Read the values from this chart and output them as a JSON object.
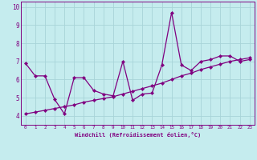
{
  "xlabel": "Windchill (Refroidissement éolien,°C)",
  "xlim": [
    -0.5,
    23.5
  ],
  "ylim": [
    3.5,
    10.3
  ],
  "xticks": [
    0,
    1,
    2,
    3,
    4,
    5,
    6,
    7,
    8,
    9,
    10,
    11,
    12,
    13,
    14,
    15,
    16,
    17,
    18,
    19,
    20,
    21,
    22,
    23
  ],
  "yticks": [
    4,
    5,
    6,
    7,
    8,
    9,
    10
  ],
  "background_color": "#c5ecee",
  "grid_color": "#a8d4d8",
  "line_color": "#800080",
  "line1_x": [
    0,
    1,
    2,
    3,
    4,
    5,
    6,
    7,
    8,
    9,
    10,
    11,
    12,
    13,
    14,
    15,
    16,
    17,
    18,
    19,
    20,
    21,
    22,
    23
  ],
  "line1_y": [
    6.9,
    6.2,
    6.2,
    4.9,
    4.1,
    6.1,
    6.1,
    5.4,
    5.2,
    5.1,
    7.0,
    4.85,
    5.2,
    5.25,
    6.8,
    9.7,
    6.8,
    6.5,
    7.0,
    7.1,
    7.3,
    7.3,
    7.0,
    7.1
  ],
  "line2_x": [
    0,
    1,
    2,
    3,
    4,
    5,
    6,
    7,
    8,
    9,
    10,
    11,
    12,
    13,
    14,
    15,
    16,
    17,
    18,
    19,
    20,
    21,
    22,
    23
  ],
  "line2_y": [
    4.1,
    4.2,
    4.3,
    4.4,
    4.5,
    4.6,
    4.75,
    4.85,
    4.95,
    5.05,
    5.2,
    5.35,
    5.5,
    5.65,
    5.8,
    6.0,
    6.2,
    6.35,
    6.55,
    6.7,
    6.85,
    7.0,
    7.1,
    7.2
  ]
}
